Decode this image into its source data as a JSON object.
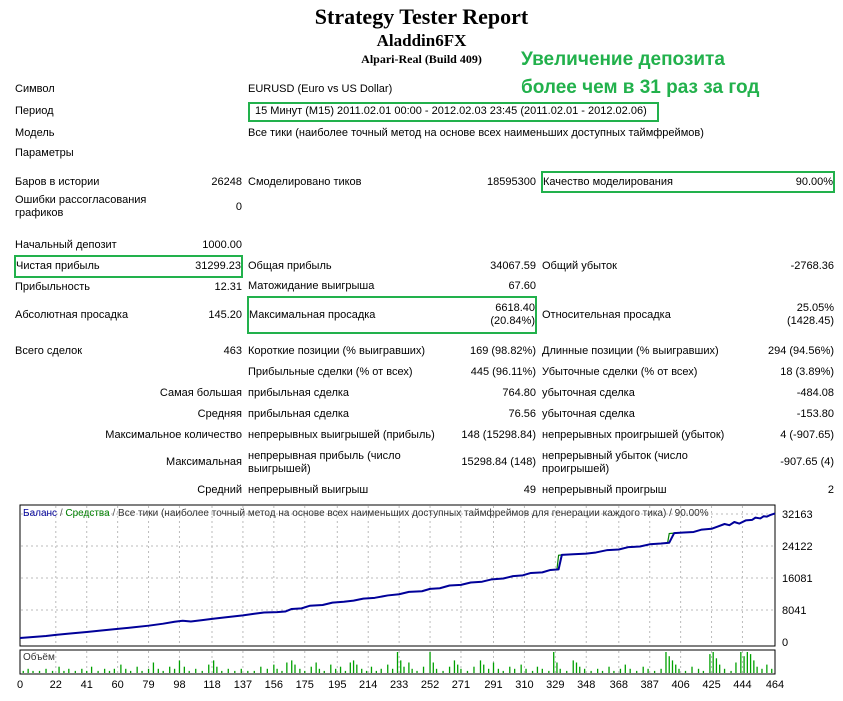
{
  "header": {
    "title": "Strategy Tester Report",
    "ea_name": "Aladdin6FX",
    "account": "Alpari-Real (Build 409)",
    "annotation": "Увеличение депозита\nболее чем в 31 раз за год"
  },
  "colors": {
    "highlight_green": "#22b14c",
    "balance_line": "#000099",
    "equity_line": "#008000",
    "volume_bar": "#00a000",
    "grid": "#bbbbbb"
  },
  "report": {
    "rows": [
      {
        "h": 21,
        "cells": [
          {
            "t": "Символ"
          },
          {
            "s": 2
          },
          {
            "t": "EURUSD (Euro vs US Dollar)",
            "s": 5
          }
        ]
      },
      {
        "h": 23,
        "cells": [
          {
            "t": "Период"
          },
          {
            "s": 2
          },
          {
            "t": "15 Минут (M15) 2011.02.01 00:00 - 2012.02.03 23:45 (2011.02.01 - 2012.02.06)",
            "s": 5,
            "box": true
          }
        ]
      },
      {
        "h": 21,
        "cells": [
          {
            "t": "Модель"
          },
          {
            "s": 2
          },
          {
            "t": "Все тики (наиболее точный метод на основе всех наименьших доступных таймфреймов)",
            "s": 5
          }
        ]
      },
      {
        "h": 18,
        "cells": [
          {
            "t": "Параметры"
          },
          {
            "s": 7
          }
        ]
      },
      {
        "spacer": true,
        "h": 10,
        "cells": [
          {
            "s": 8
          }
        ]
      },
      {
        "h": 20,
        "cells": [
          {
            "t": "Баров в истории"
          },
          {
            "t": "26248",
            "a": "r"
          },
          {},
          {
            "t": "Смоделировано тиков"
          },
          {
            "t": "18595300",
            "a": "r"
          },
          {},
          {
            "t": "Качество моделирования",
            "hl": "l"
          },
          {
            "t": "90.00%",
            "a": "r",
            "hl": "r"
          }
        ]
      },
      {
        "h": 30,
        "cells": [
          {
            "t": "Ошибки рассогласования графиков"
          },
          {
            "t": "0",
            "a": "r"
          },
          {
            "s": 6
          }
        ]
      },
      {
        "spacer": true,
        "h": 14,
        "cells": [
          {
            "s": 8
          }
        ]
      },
      {
        "h": 20,
        "cells": [
          {
            "t": "Начальный депозит"
          },
          {
            "t": "1000.00",
            "a": "r"
          },
          {
            "s": 6
          }
        ]
      },
      {
        "h": 21,
        "cells": [
          {
            "t": "Чистая прибыль",
            "hl": "l"
          },
          {
            "t": "31299.23",
            "a": "r",
            "hl": "r"
          },
          {},
          {
            "t": "Общая прибыль"
          },
          {
            "t": "34067.59",
            "a": "r"
          },
          {},
          {
            "t": "Общий убыток"
          },
          {
            "t": "-2768.36",
            "a": "r"
          }
        ]
      },
      {
        "h": 20,
        "cells": [
          {
            "t": "Прибыльность"
          },
          {
            "t": "12.31",
            "a": "r"
          },
          {},
          {
            "t": "Матожидание выигрыша"
          },
          {
            "t": "67.60",
            "a": "r"
          },
          {
            "s": 3
          }
        ]
      },
      {
        "h": 36,
        "cells": [
          {
            "t": "Абсолютная просадка"
          },
          {
            "t": "145.20",
            "a": "r"
          },
          {},
          {
            "t": "Максимальная просадка",
            "hl": "l"
          },
          {
            "t": "6618.40\n(20.84%)",
            "a": "r",
            "hl": "r"
          },
          {},
          {
            "t": "Относительная просадка"
          },
          {
            "t": "25.05%\n(1428.45)",
            "a": "r"
          }
        ]
      },
      {
        "spacer": true,
        "h": 8,
        "cells": [
          {
            "s": 8
          }
        ]
      },
      {
        "h": 21,
        "cells": [
          {
            "t": "Всего сделок"
          },
          {
            "t": "463",
            "a": "r"
          },
          {},
          {
            "t": "Короткие позиции (% выигравших)"
          },
          {
            "t": "169 (98.82%)",
            "a": "r"
          },
          {},
          {
            "t": "Длинные позиции (% выигравших)"
          },
          {
            "t": "294 (94.56%)",
            "a": "r"
          }
        ]
      },
      {
        "h": 21,
        "cells": [
          {
            "s": 3
          },
          {
            "t": "Прибыльные сделки (% от всех)"
          },
          {
            "t": "445 (96.11%)",
            "a": "r"
          },
          {},
          {
            "t": "Убыточные сделки (% от всех)"
          },
          {
            "t": "18 (3.89%)",
            "a": "r"
          }
        ]
      },
      {
        "h": 21,
        "cells": [
          {
            "t": "Самая большая",
            "s": 2,
            "a": "r"
          },
          {},
          {
            "t": "прибыльная сделка"
          },
          {
            "t": "764.80",
            "a": "r"
          },
          {},
          {
            "t": "убыточная сделка"
          },
          {
            "t": "-484.08",
            "a": "r"
          }
        ]
      },
      {
        "h": 21,
        "cells": [
          {
            "t": "Средняя",
            "s": 2,
            "a": "r"
          },
          {},
          {
            "t": "прибыльная сделка"
          },
          {
            "t": "76.56",
            "a": "r"
          },
          {},
          {
            "t": "убыточная сделка"
          },
          {
            "t": "-153.80",
            "a": "r"
          }
        ]
      },
      {
        "h": 21,
        "cells": [
          {
            "t": "Максимальное количество",
            "s": 2,
            "a": "r"
          },
          {},
          {
            "t": "непрерывных выигрышей (прибыль)"
          },
          {
            "t": "148 (15298.84)",
            "a": "r"
          },
          {},
          {
            "t": "непрерывных проигрышей (убыток)"
          },
          {
            "t": "4 (-907.65)",
            "a": "r"
          }
        ]
      },
      {
        "h": 33,
        "cells": [
          {
            "t": "Максимальная",
            "s": 2,
            "a": "r"
          },
          {},
          {
            "t": "непрерывная прибыль (число выигрышей)"
          },
          {
            "t": "15298.84 (148)",
            "a": "r"
          },
          {},
          {
            "t": "непрерывный убыток (число проигрышей)"
          },
          {
            "t": "-907.65 (4)",
            "a": "r"
          }
        ]
      },
      {
        "h": 22,
        "cells": [
          {
            "t": "Средний",
            "s": 2,
            "a": "r"
          },
          {},
          {
            "t": "непрерывный выигрыш"
          },
          {
            "t": "49",
            "a": "r"
          },
          {},
          {
            "t": "непрерывный проигрыш"
          },
          {
            "t": "2",
            "a": "r"
          }
        ]
      }
    ]
  },
  "chart_data": {
    "type": "line",
    "title": "Баланс / Средства / Все тики (наиболее точный метод на основе всех наименьших доступных таймфреймов для генерации каждого тика) / 90.00%",
    "title_parts": [
      {
        "text": "Баланс",
        "color": "#000099"
      },
      {
        "text": " / ",
        "color": "#555555"
      },
      {
        "text": "Средства",
        "color": "#008000"
      },
      {
        "text": " / ",
        "color": "#555555"
      },
      {
        "text": "Все тики (наиболее точный метод на основе всех наименьших доступных таймфреймов для генерации каждого тика) / 90.00%",
        "color": "#333333"
      }
    ],
    "legend": [
      {
        "name": "Баланс",
        "color": "#000099"
      },
      {
        "name": "Средства",
        "color": "#008000"
      }
    ],
    "xlabel": "",
    "ylabel": "",
    "xlim": [
      0,
      464
    ],
    "ylim": [
      0,
      33500
    ],
    "grid": true,
    "y_ticks": [
      0,
      8041,
      16081,
      24122,
      32163
    ],
    "x_ticks": [
      0,
      22,
      41,
      60,
      79,
      98,
      118,
      137,
      156,
      175,
      195,
      214,
      233,
      252,
      271,
      291,
      310,
      329,
      348,
      368,
      387,
      406,
      425,
      444,
      464
    ],
    "balance_points": [
      [
        0,
        1000
      ],
      [
        8,
        1250
      ],
      [
        16,
        1500
      ],
      [
        22,
        1800
      ],
      [
        30,
        2100
      ],
      [
        41,
        2500
      ],
      [
        50,
        2900
      ],
      [
        60,
        3300
      ],
      [
        70,
        3700
      ],
      [
        79,
        4100
      ],
      [
        88,
        4600
      ],
      [
        95,
        5100
      ],
      [
        100,
        5350
      ],
      [
        105,
        5150
      ],
      [
        112,
        5500
      ],
      [
        118,
        5800
      ],
      [
        126,
        6200
      ],
      [
        137,
        6700
      ],
      [
        144,
        7100
      ],
      [
        150,
        7400
      ],
      [
        158,
        7500
      ],
      [
        163,
        7650
      ],
      [
        167,
        8300
      ],
      [
        173,
        8450
      ],
      [
        178,
        9100
      ],
      [
        186,
        9300
      ],
      [
        192,
        9900
      ],
      [
        199,
        10100
      ],
      [
        205,
        10400
      ],
      [
        211,
        10900
      ],
      [
        218,
        11100
      ],
      [
        226,
        11700
      ],
      [
        233,
        12000
      ],
      [
        239,
        12600
      ],
      [
        247,
        12750
      ],
      [
        252,
        13350
      ],
      [
        258,
        13500
      ],
      [
        264,
        14200
      ],
      [
        271,
        14350
      ],
      [
        277,
        14950
      ],
      [
        284,
        15150
      ],
      [
        290,
        15750
      ],
      [
        297,
        15950
      ],
      [
        303,
        16550
      ],
      [
        309,
        16750
      ],
      [
        314,
        17350
      ],
      [
        321,
        17500
      ],
      [
        326,
        18100
      ],
      [
        331,
        18250
      ],
      [
        333,
        21900
      ],
      [
        340,
        22050
      ],
      [
        348,
        22200
      ],
      [
        354,
        22500
      ],
      [
        361,
        23100
      ],
      [
        368,
        23250
      ],
      [
        374,
        23850
      ],
      [
        381,
        24000
      ],
      [
        387,
        24550
      ],
      [
        394,
        24750
      ],
      [
        399,
        24950
      ],
      [
        402,
        27350
      ],
      [
        408,
        27500
      ],
      [
        414,
        27650
      ],
      [
        419,
        28250
      ],
      [
        425,
        28450
      ],
      [
        429,
        29050
      ],
      [
        433,
        29650
      ],
      [
        436,
        29350
      ],
      [
        439,
        30150
      ],
      [
        442,
        29750
      ],
      [
        446,
        30550
      ],
      [
        450,
        30700
      ],
      [
        452,
        31250
      ],
      [
        455,
        31050
      ],
      [
        457,
        31600
      ],
      [
        459,
        31500
      ],
      [
        461,
        31900
      ],
      [
        464,
        32299
      ]
    ],
    "equity_segments": [
      [
        [
          330,
          18250
        ],
        [
          331,
          21800
        ],
        [
          333,
          21900
        ]
      ],
      [
        [
          398,
          24900
        ],
        [
          399,
          27250
        ],
        [
          402,
          27350
        ]
      ]
    ],
    "volume": {
      "label": "Объём",
      "unit_max": 10,
      "bars": [
        [
          2,
          1
        ],
        [
          5,
          2
        ],
        [
          8,
          1
        ],
        [
          12,
          1
        ],
        [
          16,
          2
        ],
        [
          20,
          1
        ],
        [
          24,
          3
        ],
        [
          27,
          1
        ],
        [
          30,
          2
        ],
        [
          34,
          1
        ],
        [
          38,
          2
        ],
        [
          41,
          1
        ],
        [
          44,
          3
        ],
        [
          48,
          1
        ],
        [
          52,
          2
        ],
        [
          55,
          1
        ],
        [
          58,
          2
        ],
        [
          62,
          4
        ],
        [
          65,
          2
        ],
        [
          68,
          1
        ],
        [
          72,
          3
        ],
        [
          75,
          1
        ],
        [
          79,
          2
        ],
        [
          82,
          5
        ],
        [
          85,
          2
        ],
        [
          88,
          1
        ],
        [
          92,
          3
        ],
        [
          95,
          2
        ],
        [
          98,
          6
        ],
        [
          101,
          3
        ],
        [
          104,
          1
        ],
        [
          108,
          2
        ],
        [
          112,
          1
        ],
        [
          116,
          4
        ],
        [
          119,
          6
        ],
        [
          121,
          3
        ],
        [
          124,
          1
        ],
        [
          128,
          2
        ],
        [
          132,
          1
        ],
        [
          136,
          2
        ],
        [
          140,
          1
        ],
        [
          144,
          1
        ],
        [
          148,
          3
        ],
        [
          152,
          2
        ],
        [
          156,
          4
        ],
        [
          158,
          2
        ],
        [
          161,
          1
        ],
        [
          164,
          5
        ],
        [
          167,
          6
        ],
        [
          169,
          4
        ],
        [
          172,
          2
        ],
        [
          175,
          1
        ],
        [
          179,
          3
        ],
        [
          182,
          5
        ],
        [
          184,
          2
        ],
        [
          187,
          1
        ],
        [
          191,
          4
        ],
        [
          194,
          2
        ],
        [
          197,
          3
        ],
        [
          200,
          1
        ],
        [
          203,
          5
        ],
        [
          205,
          6
        ],
        [
          207,
          4
        ],
        [
          210,
          2
        ],
        [
          213,
          1
        ],
        [
          216,
          3
        ],
        [
          219,
          1
        ],
        [
          222,
          2
        ],
        [
          226,
          4
        ],
        [
          229,
          2
        ],
        [
          232,
          10
        ],
        [
          234,
          6
        ],
        [
          236,
          3
        ],
        [
          239,
          5
        ],
        [
          241,
          2
        ],
        [
          244,
          1
        ],
        [
          248,
          3
        ],
        [
          252,
          10
        ],
        [
          254,
          5
        ],
        [
          256,
          2
        ],
        [
          260,
          1
        ],
        [
          264,
          3
        ],
        [
          267,
          6
        ],
        [
          269,
          4
        ],
        [
          271,
          2
        ],
        [
          275,
          1
        ],
        [
          279,
          3
        ],
        [
          283,
          6
        ],
        [
          285,
          4
        ],
        [
          288,
          2
        ],
        [
          291,
          5
        ],
        [
          294,
          2
        ],
        [
          297,
          1
        ],
        [
          301,
          3
        ],
        [
          304,
          2
        ],
        [
          308,
          4
        ],
        [
          311,
          2
        ],
        [
          315,
          1
        ],
        [
          318,
          3
        ],
        [
          321,
          2
        ],
        [
          325,
          1
        ],
        [
          328,
          10
        ],
        [
          330,
          5
        ],
        [
          332,
          2
        ],
        [
          336,
          1
        ],
        [
          340,
          6
        ],
        [
          342,
          5
        ],
        [
          344,
          3
        ],
        [
          347,
          2
        ],
        [
          351,
          1
        ],
        [
          355,
          2
        ],
        [
          358,
          1
        ],
        [
          362,
          3
        ],
        [
          365,
          1
        ],
        [
          369,
          2
        ],
        [
          372,
          4
        ],
        [
          375,
          2
        ],
        [
          379,
          1
        ],
        [
          383,
          3
        ],
        [
          386,
          2
        ],
        [
          390,
          1
        ],
        [
          394,
          2
        ],
        [
          397,
          10
        ],
        [
          399,
          8
        ],
        [
          401,
          6
        ],
        [
          403,
          4
        ],
        [
          405,
          2
        ],
        [
          409,
          1
        ],
        [
          413,
          3
        ],
        [
          417,
          2
        ],
        [
          420,
          1
        ],
        [
          424,
          9
        ],
        [
          426,
          10
        ],
        [
          428,
          7
        ],
        [
          430,
          4
        ],
        [
          433,
          2
        ],
        [
          437,
          1
        ],
        [
          440,
          5
        ],
        [
          443,
          10
        ],
        [
          445,
          8
        ],
        [
          447,
          10
        ],
        [
          449,
          9
        ],
        [
          451,
          6
        ],
        [
          453,
          3
        ],
        [
          456,
          2
        ],
        [
          459,
          4
        ],
        [
          462,
          2
        ]
      ]
    }
  }
}
